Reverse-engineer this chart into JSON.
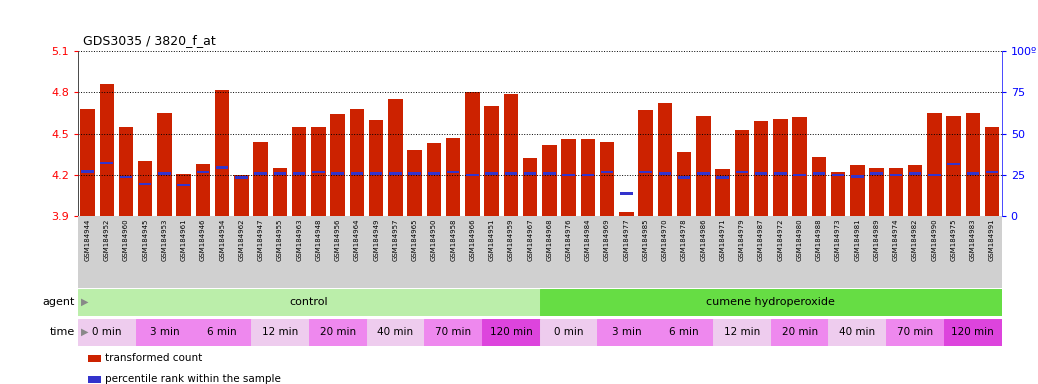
{
  "title": "GDS3035 / 3820_f_at",
  "samples": [
    "GSM184944",
    "GSM184952",
    "GSM184960",
    "GSM184945",
    "GSM184953",
    "GSM184961",
    "GSM184946",
    "GSM184954",
    "GSM184962",
    "GSM184947",
    "GSM184955",
    "GSM184963",
    "GSM184948",
    "GSM184956",
    "GSM184964",
    "GSM184949",
    "GSM184957",
    "GSM184965",
    "GSM184950",
    "GSM184958",
    "GSM184966",
    "GSM184951",
    "GSM184959",
    "GSM184967",
    "GSM184968",
    "GSM184976",
    "GSM184984",
    "GSM184969",
    "GSM184977",
    "GSM184985",
    "GSM184970",
    "GSM184978",
    "GSM184986",
    "GSM184971",
    "GSM184979",
    "GSM184987",
    "GSM184972",
    "GSM184980",
    "GSM184988",
    "GSM184973",
    "GSM184981",
    "GSM184989",
    "GSM184974",
    "GSM184982",
    "GSM184990",
    "GSM184975",
    "GSM184983",
    "GSM184991"
  ],
  "bar_values": [
    4.68,
    4.86,
    4.55,
    4.3,
    4.65,
    4.21,
    4.28,
    4.82,
    4.2,
    4.44,
    4.25,
    4.55,
    4.55,
    4.64,
    4.68,
    4.6,
    4.75,
    4.38,
    4.43,
    4.47,
    4.8,
    4.7,
    4.79,
    4.32,
    4.42,
    4.46,
    4.46,
    4.44,
    3.93,
    4.67,
    4.72,
    4.37,
    4.63,
    4.24,
    4.53,
    4.59,
    4.61,
    4.62,
    4.33,
    4.22,
    4.27,
    4.25,
    4.25,
    4.27,
    4.65,
    4.63,
    4.65,
    4.55
  ],
  "percentile_values": [
    4.225,
    4.285,
    4.185,
    4.135,
    4.21,
    4.125,
    4.22,
    4.255,
    4.18,
    4.21,
    4.21,
    4.21,
    4.22,
    4.21,
    4.21,
    4.21,
    4.21,
    4.21,
    4.21,
    4.22,
    4.2,
    4.21,
    4.21,
    4.21,
    4.21,
    4.2,
    4.2,
    4.22,
    4.065,
    4.22,
    4.21,
    4.18,
    4.21,
    4.18,
    4.22,
    4.21,
    4.21,
    4.2,
    4.21,
    4.2,
    4.19,
    4.21,
    4.2,
    4.21,
    4.2,
    4.28,
    4.21,
    4.22
  ],
  "ylim": [
    3.9,
    5.1
  ],
  "yticks": [
    3.9,
    4.2,
    4.5,
    4.8,
    5.1
  ],
  "right_yticks": [
    0,
    25,
    50,
    75,
    100
  ],
  "bar_color": "#cc2200",
  "percentile_color": "#3333cc",
  "agent_groups": [
    {
      "label": "control",
      "start": 0,
      "end": 24,
      "color": "#bbeeaa"
    },
    {
      "label": "cumene hydroperoxide",
      "start": 24,
      "end": 48,
      "color": "#66dd44"
    }
  ],
  "time_groups": [
    {
      "label": "0 min",
      "start": 0,
      "end": 3,
      "color": "#eeccee"
    },
    {
      "label": "3 min",
      "start": 3,
      "end": 6,
      "color": "#ee88ee"
    },
    {
      "label": "6 min",
      "start": 6,
      "end": 9,
      "color": "#ee88ee"
    },
    {
      "label": "12 min",
      "start": 9,
      "end": 12,
      "color": "#eeccee"
    },
    {
      "label": "20 min",
      "start": 12,
      "end": 15,
      "color": "#ee88ee"
    },
    {
      "label": "40 min",
      "start": 15,
      "end": 18,
      "color": "#eeccee"
    },
    {
      "label": "70 min",
      "start": 18,
      "end": 21,
      "color": "#ee88ee"
    },
    {
      "label": "120 min",
      "start": 21,
      "end": 24,
      "color": "#dd44dd"
    },
    {
      "label": "0 min",
      "start": 24,
      "end": 27,
      "color": "#eeccee"
    },
    {
      "label": "3 min",
      "start": 27,
      "end": 30,
      "color": "#ee88ee"
    },
    {
      "label": "6 min",
      "start": 30,
      "end": 33,
      "color": "#ee88ee"
    },
    {
      "label": "12 min",
      "start": 33,
      "end": 36,
      "color": "#eeccee"
    },
    {
      "label": "20 min",
      "start": 36,
      "end": 39,
      "color": "#ee88ee"
    },
    {
      "label": "40 min",
      "start": 39,
      "end": 42,
      "color": "#eeccee"
    },
    {
      "label": "70 min",
      "start": 42,
      "end": 45,
      "color": "#ee88ee"
    },
    {
      "label": "120 min",
      "start": 45,
      "end": 48,
      "color": "#dd44dd"
    }
  ],
  "legend_items": [
    {
      "label": "transformed count",
      "color": "#cc2200",
      "marker": "s"
    },
    {
      "label": "percentile rank within the sample",
      "color": "#3333cc",
      "marker": "s"
    }
  ]
}
